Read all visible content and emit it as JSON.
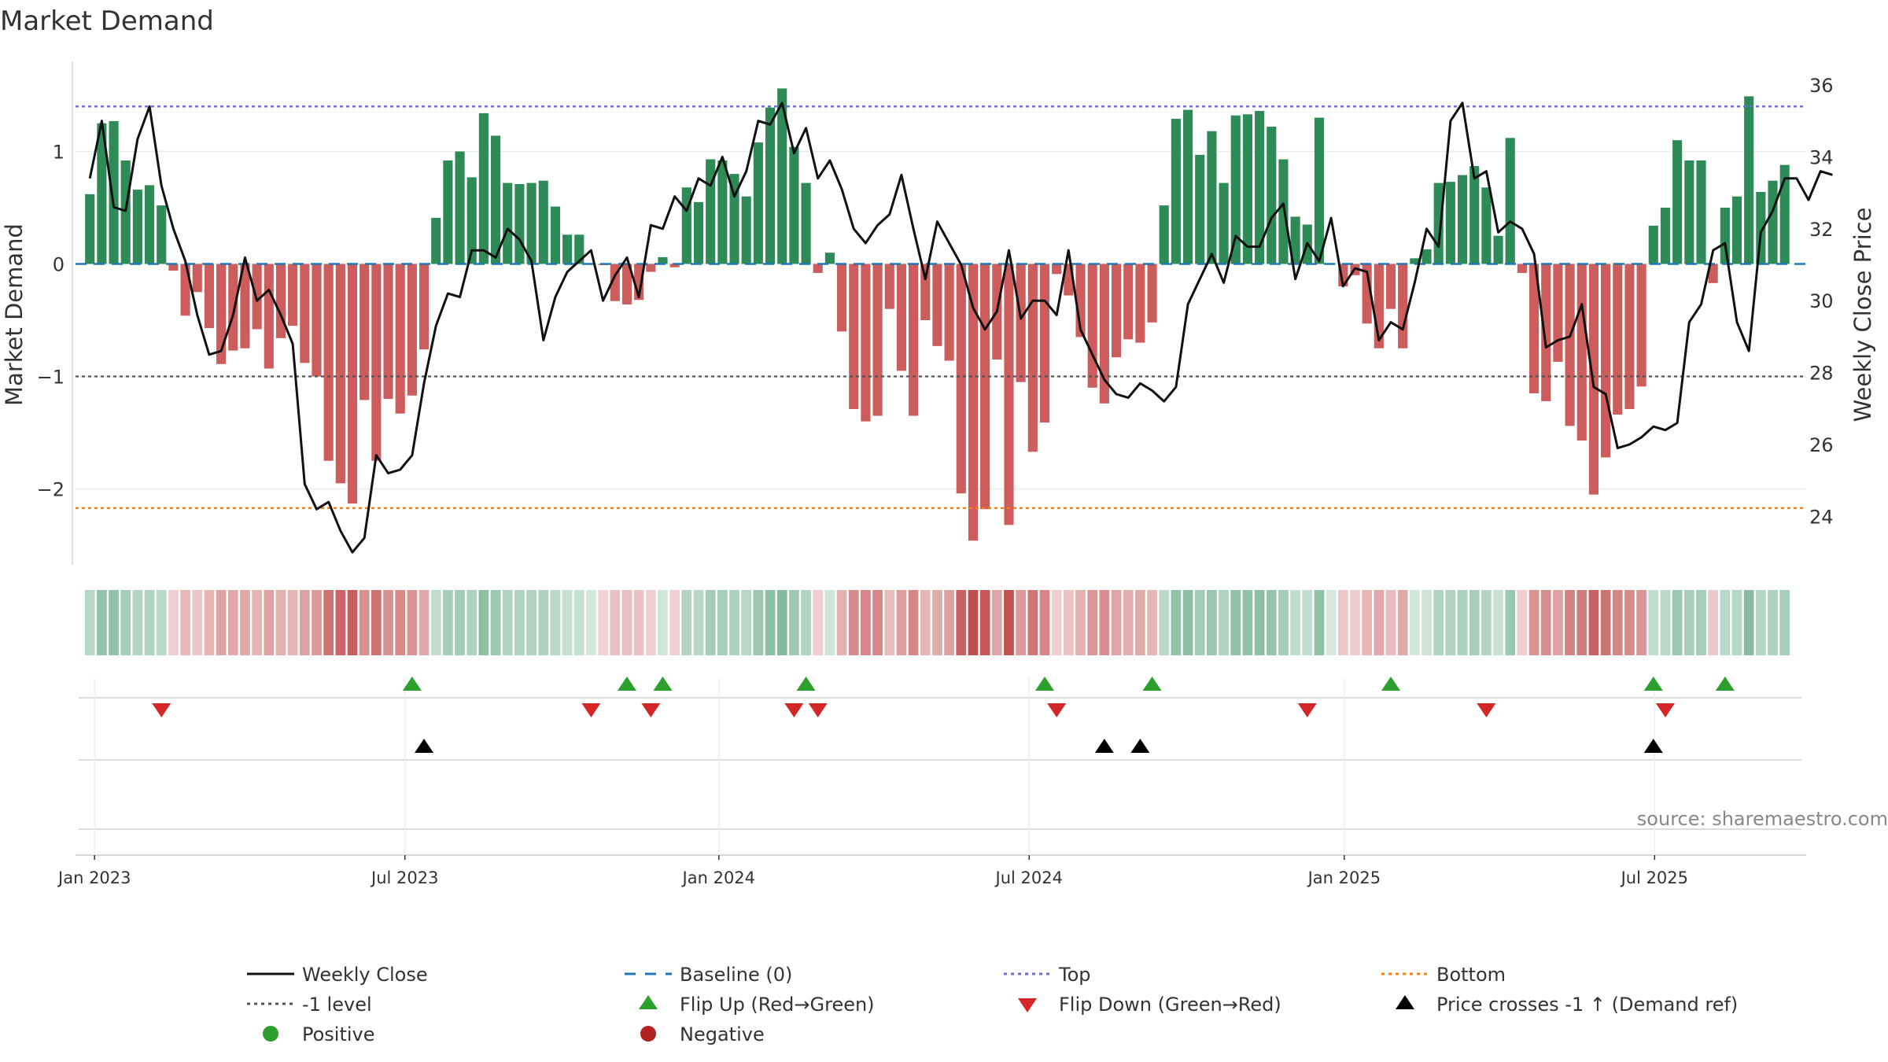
{
  "chart_data": {
    "type": "bar",
    "title": "Market Demand",
    "ylabel_left": "Market Demand",
    "ylabel_right": "Weekly Close Price",
    "ylim_left": [
      -2.65,
      1.78
    ],
    "ylim_right": [
      22.8,
      36.4
    ],
    "yticks_left": [
      1,
      0,
      -1,
      -2
    ],
    "yticks_left_labels": [
      "1",
      "0",
      "−1",
      "−2"
    ],
    "yticks_right": [
      36,
      34,
      32,
      30,
      28,
      26,
      24
    ],
    "x_range": [
      -1.2,
      143.8
    ],
    "x_ticks": [
      {
        "label": "Jan 2023",
        "week": 0.4
      },
      {
        "label": "Jul 2023",
        "week": 26.4
      },
      {
        "label": "Jan 2024",
        "week": 52.7
      },
      {
        "label": "Jul 2024",
        "week": 78.7
      },
      {
        "label": "Jan 2025",
        "week": 105.1
      },
      {
        "label": "Jul 2025",
        "week": 131.1
      }
    ],
    "reference_lines": {
      "top": 1.4,
      "minus_one": -1.0,
      "bottom": -2.17,
      "baseline": 0
    },
    "demand": [
      0.62,
      1.25,
      1.27,
      0.92,
      0.66,
      0.7,
      0.52,
      -0.06,
      -0.46,
      -0.25,
      -0.57,
      -0.89,
      -0.77,
      -0.75,
      -0.58,
      -0.93,
      -0.66,
      -0.55,
      -0.88,
      -1.0,
      -1.75,
      -1.95,
      -2.13,
      -1.21,
      -1.75,
      -1.2,
      -1.33,
      -1.17,
      -0.76,
      0.41,
      0.92,
      1.0,
      0.77,
      1.34,
      1.14,
      0.72,
      0.71,
      0.72,
      0.74,
      0.51,
      0.26,
      0.26,
      0.0,
      -0.01,
      -0.33,
      -0.36,
      -0.32,
      -0.07,
      0.06,
      -0.03,
      0.68,
      0.55,
      0.93,
      0.92,
      0.8,
      0.6,
      1.08,
      1.39,
      1.56,
      1.04,
      0.72,
      -0.08,
      0.1,
      -0.6,
      -1.29,
      -1.4,
      -1.35,
      -0.4,
      -0.95,
      -1.35,
      -0.5,
      -0.73,
      -0.86,
      -2.04,
      -2.46,
      -2.18,
      -0.85,
      -2.32,
      -1.05,
      -1.67,
      -1.41,
      -0.09,
      -0.28,
      -0.65,
      -1.1,
      -1.24,
      -0.83,
      -0.67,
      -0.7,
      -0.52,
      0.52,
      1.29,
      1.37,
      0.97,
      1.18,
      0.72,
      1.32,
      1.33,
      1.36,
      1.22,
      0.93,
      0.42,
      0.35,
      1.3,
      0.0,
      -0.2,
      -0.1,
      -0.53,
      -0.75,
      -0.4,
      -0.75,
      0.05,
      0.13,
      0.72,
      0.73,
      0.79,
      0.87,
      0.68,
      0.25,
      1.12,
      -0.08,
      -1.15,
      -1.22,
      -0.87,
      -1.44,
      -1.57,
      -2.05,
      -1.72,
      -1.34,
      -1.29,
      -1.09,
      0.34,
      0.5,
      1.1,
      0.92,
      0.92,
      -0.17,
      0.5,
      0.6,
      1.49,
      0.64,
      0.74,
      0.88
    ],
    "weekly_close": [
      33.4,
      35.0,
      32.6,
      32.5,
      34.5,
      35.4,
      33.2,
      32.0,
      31.1,
      29.6,
      28.5,
      28.6,
      29.6,
      31.2,
      30.0,
      30.3,
      29.6,
      28.8,
      24.9,
      24.2,
      24.4,
      23.6,
      23.0,
      23.4,
      25.7,
      25.2,
      25.3,
      25.7,
      27.7,
      29.3,
      30.2,
      30.1,
      31.4,
      31.4,
      31.2,
      32.0,
      31.7,
      31.1,
      28.9,
      30.1,
      30.8,
      31.1,
      31.4,
      30.0,
      30.7,
      31.2,
      30.1,
      32.1,
      32.0,
      32.9,
      32.5,
      33.4,
      33.2,
      34.0,
      32.9,
      33.6,
      35.0,
      34.9,
      35.5,
      34.1,
      34.8,
      33.4,
      33.9,
      33.1,
      32.0,
      31.6,
      32.1,
      32.4,
      33.5,
      32.0,
      30.6,
      32.2,
      31.6,
      31.0,
      29.8,
      29.2,
      29.7,
      31.4,
      29.5,
      30.0,
      30.0,
      29.6,
      31.4,
      29.2,
      28.5,
      27.8,
      27.4,
      27.3,
      27.7,
      27.5,
      27.2,
      27.6,
      29.9,
      30.6,
      31.3,
      30.5,
      31.8,
      31.5,
      31.5,
      32.3,
      32.7,
      30.6,
      31.6,
      31.1,
      32.3,
      30.4,
      30.9,
      30.8,
      28.9,
      29.4,
      29.2,
      30.5,
      32.0,
      31.5,
      35.0,
      35.5,
      33.4,
      33.6,
      31.9,
      32.2,
      32.0,
      31.3,
      28.7,
      28.9,
      29.0,
      29.9,
      27.6,
      27.4,
      25.9,
      26.0,
      26.2,
      26.5,
      26.4,
      26.6,
      29.4,
      29.9,
      31.4,
      31.6,
      29.4,
      28.6,
      31.9,
      32.5,
      33.4,
      33.4,
      32.8,
      33.6,
      33.5
    ],
    "flip_up_weeks": [
      27,
      45,
      48,
      60,
      80,
      89,
      109,
      131,
      137
    ],
    "flip_down_weeks": [
      6,
      42,
      47,
      59,
      61,
      81,
      102,
      117,
      132
    ],
    "price_cross_weeks": [
      28,
      85,
      88,
      131
    ],
    "source_text": "source: sharemaestro.com",
    "legend": [
      {
        "label": "Weekly Close",
        "kind": "line",
        "color": "#111111"
      },
      {
        "label": "Baseline (0)",
        "kind": "dash",
        "color": "#1f77b4"
      },
      {
        "label": "Top",
        "kind": "dot",
        "color": "#6a6ad8"
      },
      {
        "label": "Bottom",
        "kind": "dot",
        "color": "#ff7f0e"
      },
      {
        "label": "-1 level",
        "kind": "dot",
        "color": "#555555"
      },
      {
        "label": "Flip Up (Red→Green)",
        "kind": "tri-up",
        "color": "#2ca02c"
      },
      {
        "label": "Flip Down (Green→Red)",
        "kind": "tri-down",
        "color": "#d62728"
      },
      {
        "label": "Price crosses -1 ↑ (Demand ref)",
        "kind": "tri-up",
        "color": "#000000"
      },
      {
        "label": "Positive",
        "kind": "circle",
        "color": "#2ca02c"
      },
      {
        "label": "Negative",
        "kind": "circle",
        "color": "#b22222"
      }
    ],
    "colors": {
      "positive_bar": "#2e8b57",
      "negative_bar": "#cd5c5c",
      "heat_positive": "#2e8b57",
      "heat_negative": "#b22222"
    }
  }
}
